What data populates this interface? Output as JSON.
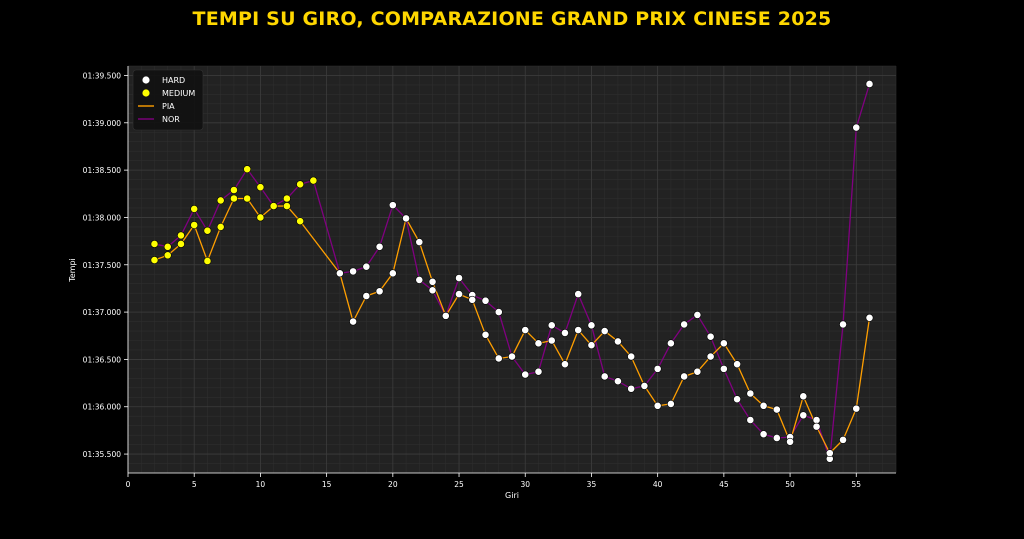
{
  "title": "TEMPI SU GIRO, COMPARAZIONE GRAND PRIX CINESE 2025",
  "colors": {
    "background": "#000000",
    "plot_bg": "#222222",
    "title": "#ffd700",
    "hard": "#ffffff",
    "medium": "#ffff00",
    "pia": "#ff9f00",
    "nor": "#800080",
    "grid": "#3c3c3c"
  },
  "chart_data": {
    "type": "line",
    "title": "TEMPI SU GIRO, COMPARAZIONE GRAND PRIX CINESE 2025",
    "xlabel": "Giri",
    "ylabel": "Tempi",
    "xlim": [
      0,
      58
    ],
    "ylim": [
      95.3,
      99.6
    ],
    "grid": true,
    "legend_position": "top-left",
    "x_ticks": [
      0,
      5,
      10,
      15,
      20,
      25,
      30,
      35,
      40,
      45,
      50,
      55
    ],
    "y_ticks": [
      95.5,
      96.0,
      96.5,
      97.0,
      97.5,
      98.0,
      98.5,
      99.0,
      99.5
    ],
    "y_tick_labels": [
      "01:35.500",
      "01:36.000",
      "01:36.500",
      "01:37.000",
      "01:37.500",
      "01:38.000",
      "01:38.500",
      "01:39.000",
      "01:39.500"
    ],
    "legend": [
      {
        "label": "HARD",
        "kind": "marker",
        "color": "#ffffff"
      },
      {
        "label": "MEDIUM",
        "kind": "marker",
        "color": "#ffff00"
      },
      {
        "label": "PIA",
        "kind": "line",
        "color": "#ff9f00"
      },
      {
        "label": "NOR",
        "kind": "line",
        "color": "#800080"
      }
    ],
    "series": [
      {
        "name": "PIA",
        "color": "#ff9f00",
        "x": [
          2,
          3,
          4,
          5,
          6,
          7,
          8,
          9,
          10,
          11,
          12,
          13,
          16,
          17,
          18,
          19,
          20,
          21,
          22,
          23,
          24,
          25,
          26,
          27,
          28,
          29,
          30,
          31,
          32,
          33,
          34,
          35,
          36,
          37,
          38,
          39,
          40,
          41,
          42,
          43,
          44,
          45,
          46,
          47,
          48,
          49,
          50,
          51,
          52,
          53,
          54,
          55,
          56
        ],
        "y": [
          97.55,
          97.6,
          97.72,
          97.92,
          97.54,
          97.9,
          98.2,
          98.2,
          98.0,
          98.12,
          98.12,
          97.96,
          97.41,
          96.9,
          97.17,
          97.22,
          97.41,
          97.99,
          97.74,
          97.32,
          96.96,
          97.19,
          97.13,
          96.76,
          96.51,
          96.53,
          96.81,
          96.67,
          96.7,
          96.45,
          96.81,
          96.65,
          96.8,
          96.69,
          96.53,
          96.22,
          96.01,
          96.03,
          96.32,
          96.37,
          96.53,
          96.67,
          96.45,
          96.14,
          96.01,
          95.97,
          95.63,
          96.11,
          95.79,
          95.51,
          95.65,
          95.98,
          96.94
        ],
        "compound": [
          "MEDIUM",
          "MEDIUM",
          "MEDIUM",
          "MEDIUM",
          "MEDIUM",
          "MEDIUM",
          "MEDIUM",
          "MEDIUM",
          "MEDIUM",
          "MEDIUM",
          "MEDIUM",
          "MEDIUM",
          "HARD",
          "HARD",
          "HARD",
          "HARD",
          "HARD",
          "HARD",
          "HARD",
          "HARD",
          "HARD",
          "HARD",
          "HARD",
          "HARD",
          "HARD",
          "HARD",
          "HARD",
          "HARD",
          "HARD",
          "HARD",
          "HARD",
          "HARD",
          "HARD",
          "HARD",
          "HARD",
          "HARD",
          "HARD",
          "HARD",
          "HARD",
          "HARD",
          "HARD",
          "HARD",
          "HARD",
          "HARD",
          "HARD",
          "HARD",
          "HARD",
          "HARD",
          "HARD",
          "HARD",
          "HARD",
          "HARD",
          "HARD"
        ]
      },
      {
        "name": "NOR",
        "color": "#800080",
        "x": [
          2,
          3,
          4,
          5,
          6,
          7,
          8,
          9,
          10,
          11,
          12,
          13,
          14,
          16,
          17,
          18,
          19,
          20,
          21,
          22,
          23,
          24,
          25,
          26,
          27,
          28,
          29,
          30,
          31,
          32,
          33,
          34,
          35,
          36,
          37,
          38,
          39,
          40,
          41,
          42,
          43,
          44,
          45,
          46,
          47,
          48,
          49,
          50,
          51,
          52,
          53,
          54,
          55,
          56
        ],
        "y": [
          97.72,
          97.69,
          97.81,
          98.09,
          97.86,
          98.18,
          98.29,
          98.51,
          98.32,
          98.12,
          98.2,
          98.35,
          98.39,
          97.41,
          97.43,
          97.48,
          97.69,
          98.13,
          97.99,
          97.34,
          97.23,
          96.96,
          97.36,
          97.18,
          97.12,
          97.0,
          96.53,
          96.34,
          96.37,
          96.86,
          96.78,
          97.19,
          96.86,
          96.32,
          96.27,
          96.19,
          96.22,
          96.4,
          96.67,
          96.87,
          96.97,
          96.74,
          96.4,
          96.08,
          95.86,
          95.71,
          95.67,
          95.68,
          95.91,
          95.86,
          95.45,
          96.87,
          98.95,
          99.41
        ],
        "compound": [
          "MEDIUM",
          "MEDIUM",
          "MEDIUM",
          "MEDIUM",
          "MEDIUM",
          "MEDIUM",
          "MEDIUM",
          "MEDIUM",
          "MEDIUM",
          "MEDIUM",
          "MEDIUM",
          "MEDIUM",
          "MEDIUM",
          "HARD",
          "HARD",
          "HARD",
          "HARD",
          "HARD",
          "HARD",
          "HARD",
          "HARD",
          "HARD",
          "HARD",
          "HARD",
          "HARD",
          "HARD",
          "HARD",
          "HARD",
          "HARD",
          "HARD",
          "HARD",
          "HARD",
          "HARD",
          "HARD",
          "HARD",
          "HARD",
          "HARD",
          "HARD",
          "HARD",
          "HARD",
          "HARD",
          "HARD",
          "HARD",
          "HARD",
          "HARD",
          "HARD",
          "HARD",
          "HARD",
          "HARD",
          "HARD",
          "HARD",
          "HARD",
          "HARD",
          "HARD"
        ]
      }
    ]
  }
}
